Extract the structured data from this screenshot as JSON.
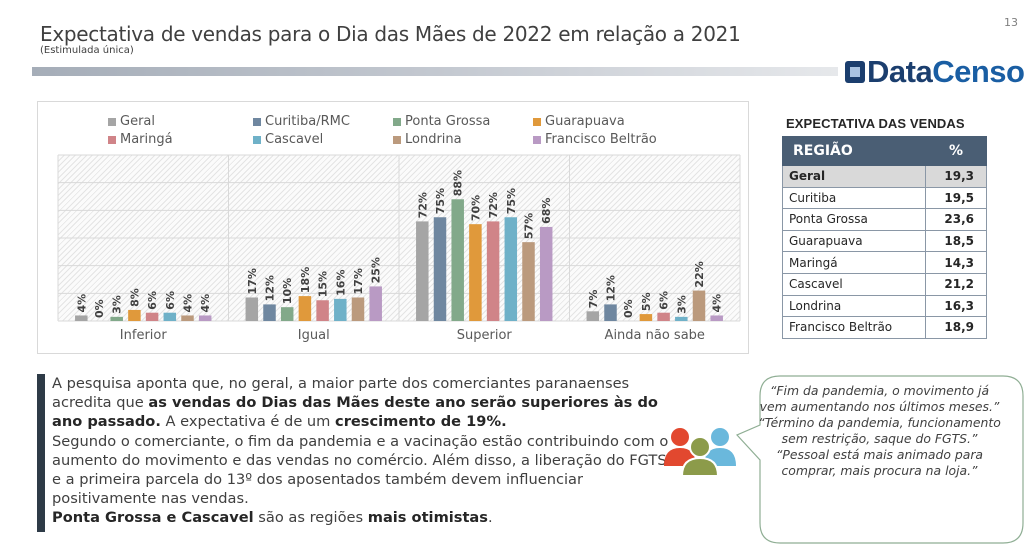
{
  "header": {
    "title": "Expectativa de vendas para o Dia das Mães de 2022 em relação a 2021",
    "subtitle": "(Estimulada única)",
    "page_number": "13",
    "logo": {
      "part1": "Data",
      "part2": "Censo",
      "icon": "chart-logo-icon"
    }
  },
  "colors": {
    "Geral": "#a5a5a5",
    "Curitiba/RMC": "#6f87a0",
    "Ponta Grossa": "#82a98a",
    "Guarapuava": "#e0993b",
    "Maringá": "#d08488",
    "Cascavel": "#6fb1c8",
    "Londrina": "#bb9a7d",
    "Francisco Beltrão": "#b99ac4"
  },
  "chart_data": {
    "type": "bar",
    "title": "",
    "xlabel": "",
    "ylabel": "",
    "ylim": [
      0,
      120
    ],
    "grid": true,
    "legend_position": "top",
    "categories": [
      "Inferior",
      "Igual",
      "Superior",
      "Ainda não sabe"
    ],
    "series": [
      {
        "name": "Geral",
        "values": [
          4,
          17,
          72,
          7
        ]
      },
      {
        "name": "Curitiba/RMC",
        "values": [
          0,
          12,
          75,
          12
        ]
      },
      {
        "name": "Ponta Grossa",
        "values": [
          3,
          10,
          88,
          0
        ]
      },
      {
        "name": "Guarapuava",
        "values": [
          8,
          18,
          70,
          5
        ]
      },
      {
        "name": "Maringá",
        "values": [
          6,
          15,
          72,
          6
        ]
      },
      {
        "name": "Cascavel",
        "values": [
          6,
          16,
          75,
          3
        ]
      },
      {
        "name": "Londrina",
        "values": [
          4,
          17,
          57,
          22
        ]
      },
      {
        "name": "Francisco Beltrão",
        "values": [
          4,
          25,
          68,
          4
        ]
      }
    ],
    "value_suffix": "%"
  },
  "table": {
    "title": "EXPECTATIVA DAS VENDAS",
    "headers": [
      "REGIÃO",
      "%"
    ],
    "rows": [
      {
        "region": "Geral",
        "value": "19,3",
        "highlight": true
      },
      {
        "region": "Curitiba",
        "value": "19,5"
      },
      {
        "region": "Ponta Grossa",
        "value": "23,6"
      },
      {
        "region": "Guarapuava",
        "value": "18,5"
      },
      {
        "region": "Maringá",
        "value": "14,3"
      },
      {
        "region": "Cascavel",
        "value": "21,2"
      },
      {
        "region": "Londrina",
        "value": "16,3"
      },
      {
        "region": "Francisco Beltrão",
        "value": "18,9"
      }
    ]
  },
  "summary": {
    "p1": "A pesquisa aponta que, no geral, a maior parte dos comerciantes paranaenses acredita que ",
    "p1_bold": "as vendas do Dias das Mães deste ano serão superiores às do ano passado.",
    "p2": " A expectativa é de um ",
    "p2_bold": "crescimento de 19%.",
    "p3": "Segundo o comerciante, o fim da pandemia e a vacinação estão contribuindo com o aumento do movimento e das vendas no comércio. Além disso, a liberação do FGTS e a primeira parcela do 13º dos aposentados também devem influenciar positivamente nas vendas.",
    "p4_bold": "Ponta Grossa e Cascavel",
    "p4": " são as regiões ",
    "p4_bold2": "mais otimistas",
    "p4_end": "."
  },
  "quotes": {
    "icon": "people-icon",
    "lines": [
      "“Fim da pandemia, o movimento já vem aumentando nos últimos meses.”",
      "“Término da pandemia, funcionamento sem restrição, saque do FGTS.”",
      "“Pessoal está mais animado para comprar, mais procura na loja.”"
    ]
  }
}
